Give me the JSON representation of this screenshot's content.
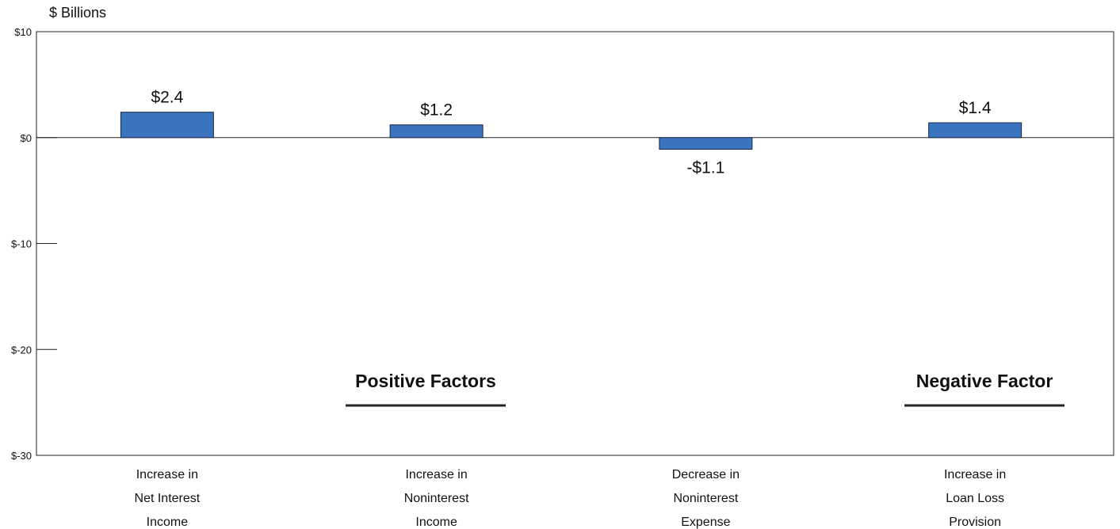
{
  "chart_data": {
    "type": "bar",
    "title": "",
    "ylabel": "$ Billions",
    "xlabel": "",
    "ylim": [
      -30,
      10
    ],
    "yticks": [
      10,
      0,
      -10,
      -20,
      -30
    ],
    "ytick_labels": [
      "$10",
      "$0",
      "$-10",
      "$-20",
      "$-30"
    ],
    "categories": [
      [
        "Increase in",
        "Net Interest",
        "Income"
      ],
      [
        "Increase in",
        "Noninterest",
        "Income"
      ],
      [
        "Decrease in",
        "Noninterest",
        "Expense"
      ],
      [
        "Increase in",
        "Loan Loss",
        "Provision"
      ]
    ],
    "values": [
      2.4,
      1.2,
      -1.1,
      1.4
    ],
    "data_labels": [
      "$2.4",
      "$1.2",
      "-$1.1",
      "$1.4"
    ],
    "bar_color": "#3a74bf",
    "grid": false,
    "legend": "none",
    "annotations": [
      {
        "text": "Positive Factors",
        "group": [
          0,
          1,
          2
        ]
      },
      {
        "text": "Negative Factor",
        "group": [
          3
        ]
      }
    ]
  }
}
